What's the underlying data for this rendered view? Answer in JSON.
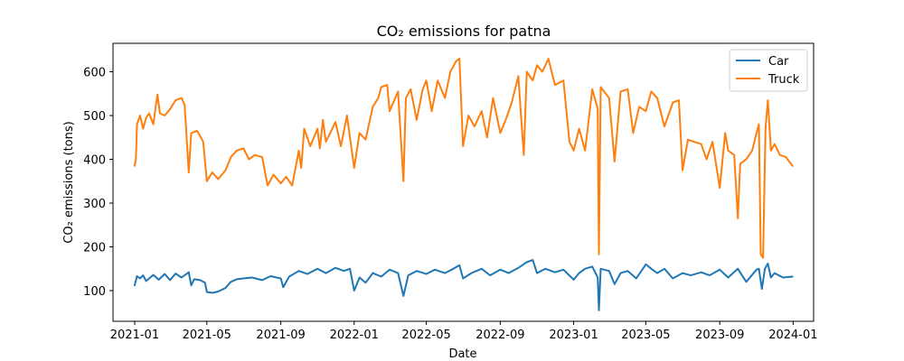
{
  "chart_data": {
    "type": "line",
    "title": "CO₂ emissions for patna",
    "xlabel": "Date",
    "ylabel": "CO₂ emissions (tons)",
    "x_ticks": [
      "2021-01",
      "2021-05",
      "2021-09",
      "2022-01",
      "2022-05",
      "2022-09",
      "2023-01",
      "2023-05",
      "2023-09",
      "2024-01"
    ],
    "y_ticks": [
      100,
      200,
      300,
      400,
      500,
      600
    ],
    "xlim": [
      "2020-11-26",
      "2024-02-04"
    ],
    "ylim": [
      30,
      665
    ],
    "grid": false,
    "legend_position": "top-right",
    "series": [
      {
        "name": "Car",
        "color": "#1f77b4",
        "points": [
          [
            "2021-01-01",
            112
          ],
          [
            "2021-01-05",
            133
          ],
          [
            "2021-01-10",
            128
          ],
          [
            "2021-01-15",
            135
          ],
          [
            "2021-01-20",
            122
          ],
          [
            "2021-02-01",
            136
          ],
          [
            "2021-02-10",
            125
          ],
          [
            "2021-02-20",
            138
          ],
          [
            "2021-03-01",
            124
          ],
          [
            "2021-03-10",
            139
          ],
          [
            "2021-03-20",
            130
          ],
          [
            "2021-04-01",
            142
          ],
          [
            "2021-04-05",
            112
          ],
          [
            "2021-04-10",
            126
          ],
          [
            "2021-04-20",
            124
          ],
          [
            "2021-04-28",
            118
          ],
          [
            "2021-05-01",
            97
          ],
          [
            "2021-05-10",
            95
          ],
          [
            "2021-05-20",
            98
          ],
          [
            "2021-06-01",
            106
          ],
          [
            "2021-06-10",
            120
          ],
          [
            "2021-06-20",
            126
          ],
          [
            "2021-07-01",
            128
          ],
          [
            "2021-07-15",
            130
          ],
          [
            "2021-08-01",
            124
          ],
          [
            "2021-08-15",
            133
          ],
          [
            "2021-09-01",
            128
          ],
          [
            "2021-09-05",
            108
          ],
          [
            "2021-09-15",
            132
          ],
          [
            "2021-10-01",
            145
          ],
          [
            "2021-10-15",
            138
          ],
          [
            "2021-11-01",
            150
          ],
          [
            "2021-11-15",
            140
          ],
          [
            "2021-12-01",
            152
          ],
          [
            "2021-12-15",
            145
          ],
          [
            "2021-12-25",
            150
          ],
          [
            "2022-01-01",
            100
          ],
          [
            "2022-01-10",
            130
          ],
          [
            "2022-01-20",
            118
          ],
          [
            "2022-02-01",
            140
          ],
          [
            "2022-02-15",
            132
          ],
          [
            "2022-03-01",
            148
          ],
          [
            "2022-03-15",
            140
          ],
          [
            "2022-03-24",
            88
          ],
          [
            "2022-04-01",
            135
          ],
          [
            "2022-04-15",
            145
          ],
          [
            "2022-05-01",
            138
          ],
          [
            "2022-05-15",
            148
          ],
          [
            "2022-06-01",
            140
          ],
          [
            "2022-06-15",
            150
          ],
          [
            "2022-06-25",
            158
          ],
          [
            "2022-07-01",
            128
          ],
          [
            "2022-07-15",
            140
          ],
          [
            "2022-08-01",
            150
          ],
          [
            "2022-08-15",
            135
          ],
          [
            "2022-09-01",
            148
          ],
          [
            "2022-09-15",
            140
          ],
          [
            "2022-10-01",
            152
          ],
          [
            "2022-10-15",
            165
          ],
          [
            "2022-10-25",
            170
          ],
          [
            "2022-11-01",
            140
          ],
          [
            "2022-11-15",
            150
          ],
          [
            "2022-12-01",
            142
          ],
          [
            "2022-12-15",
            148
          ],
          [
            "2023-01-01",
            125
          ],
          [
            "2023-01-10",
            140
          ],
          [
            "2023-01-20",
            150
          ],
          [
            "2023-02-01",
            155
          ],
          [
            "2023-02-10",
            130
          ],
          [
            "2023-02-12",
            55
          ],
          [
            "2023-02-15",
            150
          ],
          [
            "2023-03-01",
            145
          ],
          [
            "2023-03-10",
            115
          ],
          [
            "2023-03-20",
            140
          ],
          [
            "2023-04-01",
            145
          ],
          [
            "2023-04-15",
            128
          ],
          [
            "2023-05-01",
            160
          ],
          [
            "2023-05-10",
            150
          ],
          [
            "2023-05-20",
            140
          ],
          [
            "2023-06-01",
            150
          ],
          [
            "2023-06-15",
            128
          ],
          [
            "2023-07-01",
            140
          ],
          [
            "2023-07-15",
            135
          ],
          [
            "2023-08-01",
            142
          ],
          [
            "2023-08-15",
            135
          ],
          [
            "2023-09-01",
            148
          ],
          [
            "2023-09-15",
            130
          ],
          [
            "2023-10-01",
            150
          ],
          [
            "2023-10-15",
            120
          ],
          [
            "2023-11-01",
            148
          ],
          [
            "2023-11-05",
            150
          ],
          [
            "2023-11-10",
            104
          ],
          [
            "2023-11-15",
            150
          ],
          [
            "2023-11-20",
            162
          ],
          [
            "2023-11-25",
            130
          ],
          [
            "2023-12-01",
            140
          ],
          [
            "2023-12-15",
            130
          ],
          [
            "2023-12-31",
            132
          ]
        ]
      },
      {
        "name": "Truck",
        "color": "#ff7f0e",
        "points": [
          [
            "2021-01-01",
            385
          ],
          [
            "2021-01-03",
            400
          ],
          [
            "2021-01-05",
            480
          ],
          [
            "2021-01-10",
            500
          ],
          [
            "2021-01-15",
            470
          ],
          [
            "2021-01-20",
            495
          ],
          [
            "2021-01-25",
            505
          ],
          [
            "2021-02-01",
            480
          ],
          [
            "2021-02-05",
            520
          ],
          [
            "2021-02-08",
            548
          ],
          [
            "2021-02-12",
            505
          ],
          [
            "2021-02-20",
            500
          ],
          [
            "2021-03-01",
            515
          ],
          [
            "2021-03-10",
            535
          ],
          [
            "2021-03-20",
            540
          ],
          [
            "2021-03-25",
            525
          ],
          [
            "2021-04-01",
            370
          ],
          [
            "2021-04-05",
            460
          ],
          [
            "2021-04-15",
            465
          ],
          [
            "2021-04-25",
            440
          ],
          [
            "2021-05-01",
            350
          ],
          [
            "2021-05-10",
            370
          ],
          [
            "2021-05-20",
            355
          ],
          [
            "2021-06-01",
            375
          ],
          [
            "2021-06-10",
            405
          ],
          [
            "2021-06-20",
            420
          ],
          [
            "2021-07-01",
            425
          ],
          [
            "2021-07-10",
            400
          ],
          [
            "2021-07-20",
            410
          ],
          [
            "2021-08-01",
            405
          ],
          [
            "2021-08-10",
            340
          ],
          [
            "2021-08-20",
            365
          ],
          [
            "2021-09-01",
            345
          ],
          [
            "2021-09-10",
            360
          ],
          [
            "2021-09-20",
            340
          ],
          [
            "2021-10-01",
            420
          ],
          [
            "2021-10-05",
            380
          ],
          [
            "2021-10-10",
            470
          ],
          [
            "2021-10-20",
            430
          ],
          [
            "2021-11-01",
            470
          ],
          [
            "2021-11-05",
            425
          ],
          [
            "2021-11-10",
            490
          ],
          [
            "2021-11-15",
            440
          ],
          [
            "2021-12-01",
            485
          ],
          [
            "2021-12-10",
            430
          ],
          [
            "2021-12-20",
            500
          ],
          [
            "2022-01-01",
            380
          ],
          [
            "2022-01-10",
            460
          ],
          [
            "2022-01-20",
            445
          ],
          [
            "2022-02-01",
            520
          ],
          [
            "2022-02-10",
            540
          ],
          [
            "2022-02-15",
            565
          ],
          [
            "2022-02-25",
            570
          ],
          [
            "2022-03-01",
            510
          ],
          [
            "2022-03-15",
            555
          ],
          [
            "2022-03-24",
            350
          ],
          [
            "2022-03-28",
            540
          ],
          [
            "2022-04-05",
            560
          ],
          [
            "2022-04-15",
            490
          ],
          [
            "2022-04-25",
            560
          ],
          [
            "2022-05-01",
            580
          ],
          [
            "2022-05-10",
            510
          ],
          [
            "2022-05-20",
            580
          ],
          [
            "2022-06-01",
            540
          ],
          [
            "2022-06-10",
            600
          ],
          [
            "2022-06-20",
            625
          ],
          [
            "2022-06-25",
            630
          ],
          [
            "2022-07-01",
            430
          ],
          [
            "2022-07-10",
            500
          ],
          [
            "2022-07-20",
            475
          ],
          [
            "2022-08-01",
            510
          ],
          [
            "2022-08-10",
            450
          ],
          [
            "2022-08-20",
            540
          ],
          [
            "2022-09-01",
            460
          ],
          [
            "2022-09-10",
            490
          ],
          [
            "2022-09-20",
            530
          ],
          [
            "2022-10-01",
            590
          ],
          [
            "2022-10-05",
            510
          ],
          [
            "2022-10-10",
            410
          ],
          [
            "2022-10-15",
            600
          ],
          [
            "2022-10-25",
            580
          ],
          [
            "2022-11-01",
            615
          ],
          [
            "2022-11-10",
            600
          ],
          [
            "2022-11-20",
            630
          ],
          [
            "2022-12-01",
            570
          ],
          [
            "2022-12-15",
            580
          ],
          [
            "2022-12-25",
            440
          ],
          [
            "2023-01-01",
            420
          ],
          [
            "2023-01-10",
            470
          ],
          [
            "2023-01-20",
            420
          ],
          [
            "2023-02-01",
            560
          ],
          [
            "2023-02-10",
            515
          ],
          [
            "2023-02-12",
            183
          ],
          [
            "2023-02-15",
            565
          ],
          [
            "2023-03-01",
            540
          ],
          [
            "2023-03-10",
            395
          ],
          [
            "2023-03-20",
            555
          ],
          [
            "2023-04-01",
            560
          ],
          [
            "2023-04-10",
            460
          ],
          [
            "2023-04-20",
            520
          ],
          [
            "2023-05-01",
            510
          ],
          [
            "2023-05-10",
            555
          ],
          [
            "2023-05-20",
            540
          ],
          [
            "2023-06-01",
            475
          ],
          [
            "2023-06-15",
            530
          ],
          [
            "2023-06-25",
            535
          ],
          [
            "2023-07-01",
            375
          ],
          [
            "2023-07-10",
            445
          ],
          [
            "2023-07-20",
            440
          ],
          [
            "2023-08-01",
            435
          ],
          [
            "2023-08-10",
            400
          ],
          [
            "2023-08-20",
            440
          ],
          [
            "2023-09-01",
            335
          ],
          [
            "2023-09-10",
            460
          ],
          [
            "2023-09-15",
            420
          ],
          [
            "2023-09-25",
            410
          ],
          [
            "2023-10-01",
            265
          ],
          [
            "2023-10-05",
            390
          ],
          [
            "2023-10-15",
            400
          ],
          [
            "2023-10-25",
            420
          ],
          [
            "2023-11-01",
            460
          ],
          [
            "2023-11-05",
            480
          ],
          [
            "2023-11-08",
            183
          ],
          [
            "2023-11-12",
            175
          ],
          [
            "2023-11-16",
            470
          ],
          [
            "2023-11-20",
            535
          ],
          [
            "2023-11-25",
            420
          ],
          [
            "2023-12-01",
            435
          ],
          [
            "2023-12-10",
            410
          ],
          [
            "2023-12-20",
            405
          ],
          [
            "2023-12-31",
            385
          ]
        ]
      }
    ]
  }
}
